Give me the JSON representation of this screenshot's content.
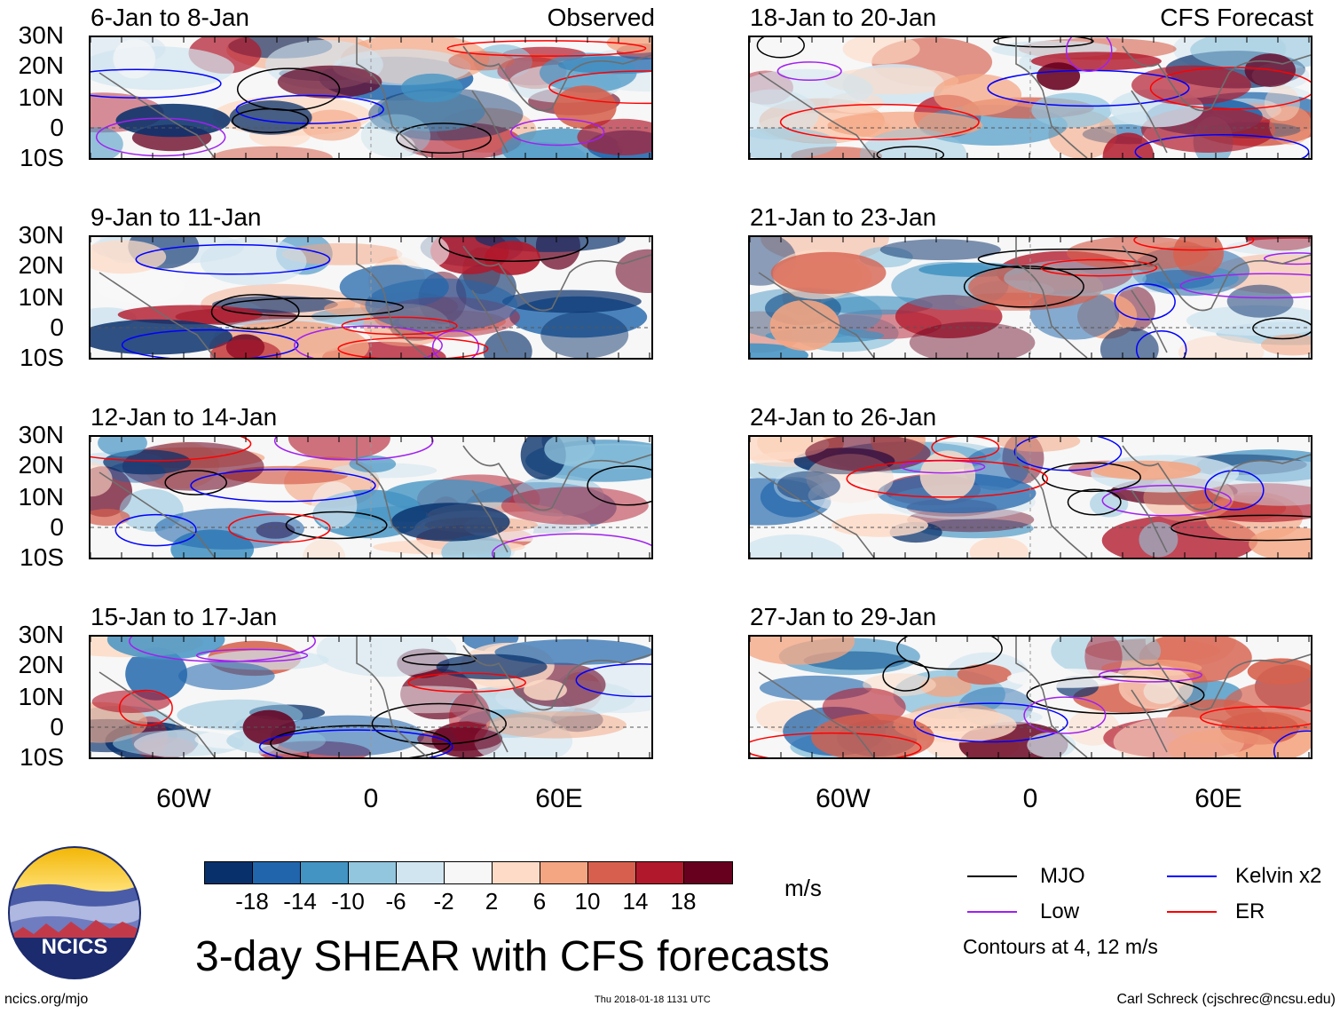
{
  "panels": [
    {
      "id": "obs1",
      "title": "6-Jan to 8-Jan",
      "label": "Observed",
      "column": "left",
      "row": 0
    },
    {
      "id": "obs2",
      "title": "9-Jan to 11-Jan",
      "label": "",
      "column": "left",
      "row": 1
    },
    {
      "id": "obs3",
      "title": "12-Jan to 14-Jan",
      "label": "",
      "column": "left",
      "row": 2
    },
    {
      "id": "obs4",
      "title": "15-Jan to 17-Jan",
      "label": "",
      "column": "left",
      "row": 3
    },
    {
      "id": "fc1",
      "title": "18-Jan to 20-Jan",
      "label": "CFS Forecast",
      "column": "right",
      "row": 0
    },
    {
      "id": "fc2",
      "title": "21-Jan to 23-Jan",
      "label": "",
      "column": "right",
      "row": 1
    },
    {
      "id": "fc3",
      "title": "24-Jan to 26-Jan",
      "label": "",
      "column": "right",
      "row": 2
    },
    {
      "id": "fc4",
      "title": "27-Jan to 29-Jan",
      "label": "",
      "column": "right",
      "row": 3
    }
  ],
  "lat_ticks": [
    "30N",
    "20N",
    "10N",
    "0",
    "10S"
  ],
  "lon_ticks": [
    "60W",
    "0",
    "60E"
  ],
  "colorbar": {
    "colors": [
      "#08306b",
      "#2166ac",
      "#4393c3",
      "#92c5de",
      "#d1e5f0",
      "#f7f7f7",
      "#fddbc7",
      "#f4a582",
      "#d6604d",
      "#b2182b",
      "#67001f"
    ],
    "ticks": [
      "-18",
      "-14",
      "-10",
      "-6",
      "-2",
      "2",
      "6",
      "10",
      "14",
      "18"
    ],
    "units": "m/s"
  },
  "legend": {
    "items": [
      {
        "label": "MJO",
        "color": "#000000"
      },
      {
        "label": "Kelvin x2",
        "color": "#0000ff"
      },
      {
        "label": "Low",
        "color": "#a020f0"
      },
      {
        "label": "ER",
        "color": "#ff0000"
      }
    ],
    "note": "Contours at 4, 12 m/s"
  },
  "title": "3-day SHEAR with CFS forecasts",
  "logo_text": "NCICS",
  "footer": {
    "left": "ncics.org/mjo",
    "center": "Thu 2018-01-18 1131 UTC",
    "right": "Carl Schreck (cjschrec@ncsu.edu)"
  }
}
